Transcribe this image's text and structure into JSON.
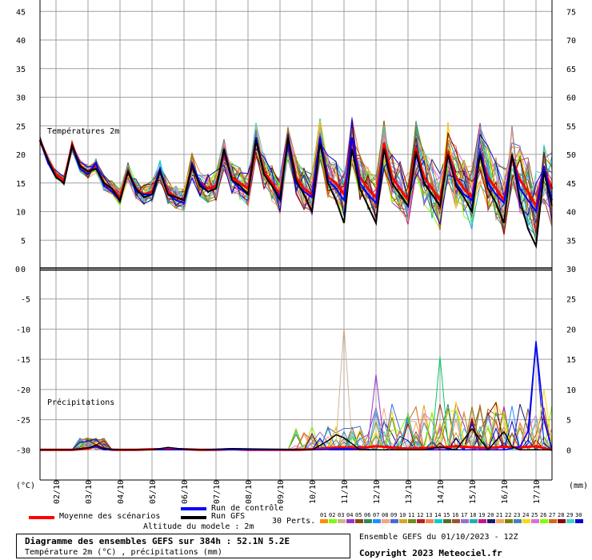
{
  "chart_data": {
    "type": "line",
    "panels": [
      {
        "name": "temperature",
        "label": "Températures 2m",
        "left_axis": {
          "range": [
            0,
            47
          ],
          "ticks": [
            0,
            5,
            10,
            15,
            20,
            25,
            30,
            35,
            40,
            45
          ]
        },
        "right_axis": {
          "range": [
            30,
            77
          ],
          "ticks": [
            35,
            40,
            45,
            50,
            55,
            60,
            65,
            70,
            75
          ]
        },
        "x_range": [
          0,
          384
        ]
      },
      {
        "name": "precipitation",
        "label": "Précipitations",
        "left_axis": {
          "range": [
            -35,
            0
          ],
          "ticks": [
            0,
            -5,
            -10,
            -15,
            -20,
            -25,
            -30
          ]
        },
        "right_axis": {
          "range": [
            -5,
            30
          ],
          "ticks": [
            30,
            25,
            20,
            15,
            10,
            5,
            0
          ]
        },
        "x_range": [
          0,
          384
        ]
      }
    ],
    "x_tick_labels": [
      "02/10",
      "03/10",
      "04/10",
      "05/10",
      "06/10",
      "07/10",
      "08/10",
      "09/10",
      "10/10",
      "11/10",
      "12/10",
      "13/10",
      "14/10",
      "15/10",
      "16/10",
      "17/10"
    ],
    "x_tick_hours": [
      12,
      36,
      60,
      84,
      108,
      132,
      156,
      180,
      204,
      228,
      252,
      276,
      300,
      324,
      348,
      372
    ],
    "left_unit": "(°C)",
    "right_unit": "(mm)",
    "series": [
      {
        "name": "Moyenne des scénarios",
        "color": "#ff0000",
        "x": [
          0,
          6,
          12,
          18,
          24,
          30,
          36,
          42,
          48,
          54,
          60,
          66,
          72,
          78,
          84,
          90,
          96,
          102,
          108,
          114,
          120,
          126,
          132,
          138,
          144,
          150,
          156,
          162,
          168,
          174,
          180,
          186,
          192,
          198,
          204,
          210,
          216,
          222,
          228,
          234,
          240,
          246,
          252,
          258,
          264,
          270,
          276,
          282,
          288,
          294,
          300,
          306,
          312,
          318,
          324,
          330,
          336,
          342,
          348,
          354,
          360,
          366,
          372,
          378,
          384
        ],
        "temp": [
          22.5,
          19,
          16.5,
          15.5,
          21.5,
          18,
          17,
          18,
          15,
          14,
          12.5,
          17,
          14,
          13,
          13.5,
          17,
          13.5,
          12.5,
          12,
          18,
          15,
          14,
          14.5,
          20,
          16,
          15,
          14,
          22.5,
          17,
          15,
          13,
          22.5,
          16,
          14,
          13,
          22.5,
          16,
          15,
          13,
          22.5,
          16,
          14,
          12.5,
          22,
          16,
          14,
          12,
          21,
          16,
          14,
          12,
          20.5,
          16,
          14,
          12.5,
          20,
          16,
          14,
          12,
          19.5,
          15.5,
          13.5,
          11,
          17.5,
          14
        ]
      },
      {
        "name": "Run de contrôle",
        "color": "#0000ff",
        "x": [
          0,
          6,
          12,
          18,
          24,
          30,
          36,
          42,
          48,
          54,
          60,
          66,
          72,
          78,
          84,
          90,
          96,
          102,
          108,
          114,
          120,
          126,
          132,
          138,
          144,
          150,
          156,
          162,
          168,
          174,
          180,
          186,
          192,
          198,
          204,
          210,
          216,
          222,
          228,
          234,
          240,
          246,
          252,
          258,
          264,
          270,
          276,
          282,
          288,
          294,
          300,
          306,
          312,
          318,
          324,
          330,
          336,
          342,
          348,
          354,
          360,
          366,
          372,
          378,
          384
        ],
        "temp": [
          22.5,
          18.5,
          16,
          15,
          21.5,
          17.5,
          16.5,
          18.5,
          14.5,
          13.5,
          12,
          17,
          13.5,
          13,
          13,
          17.5,
          13,
          12,
          11.5,
          18.5,
          15,
          13.5,
          14,
          20.5,
          15.5,
          14,
          13,
          23,
          16.5,
          14.5,
          12.5,
          22,
          15,
          13.5,
          12.5,
          23,
          15.5,
          14,
          12,
          23,
          15,
          13,
          11.5,
          21,
          15,
          13,
          11,
          20,
          15,
          13,
          11,
          20,
          15,
          13,
          12,
          20.5,
          15,
          13,
          11.5,
          20,
          14,
          12,
          10,
          18,
          12
        ]
      },
      {
        "name": "Run GFS",
        "color": "#000000",
        "x": [
          0,
          6,
          12,
          18,
          24,
          30,
          36,
          42,
          48,
          54,
          60,
          66,
          72,
          78,
          84,
          90,
          96,
          102,
          108,
          114,
          120,
          126,
          132,
          138,
          144,
          150,
          156,
          162,
          168,
          174,
          180,
          186,
          192,
          198,
          204,
          210,
          216,
          222,
          228,
          234,
          240,
          246,
          252,
          258,
          264,
          270,
          276,
          282,
          288,
          294,
          300,
          306,
          312,
          318,
          324,
          330,
          336,
          342,
          348,
          354,
          360,
          366,
          372,
          378,
          384
        ],
        "temp": [
          22.5,
          19,
          16,
          15,
          21.5,
          18,
          17,
          17.5,
          15,
          14,
          12,
          17,
          14,
          12.5,
          13,
          17,
          13,
          12.5,
          12,
          18,
          14.5,
          13.5,
          14,
          21,
          15.5,
          14.5,
          13,
          22.5,
          16.5,
          14.5,
          12,
          23,
          15.5,
          13,
          10,
          22,
          15,
          12,
          8,
          21,
          14,
          11,
          8,
          21,
          15,
          13,
          11,
          20.5,
          15,
          13,
          11,
          20,
          14.5,
          12.5,
          10,
          20,
          14,
          11.5,
          8,
          20,
          12,
          7,
          4,
          17,
          11
        ]
      }
    ],
    "precipitation_series": [
      {
        "name": "Moyenne des scénarios",
        "color": "#ff0000",
        "x": [
          0,
          12,
          24,
          36,
          42,
          48,
          54,
          60,
          72,
          84,
          96,
          108,
          120,
          132,
          144,
          156,
          168,
          180,
          192,
          204,
          216,
          228,
          240,
          252,
          264,
          276,
          288,
          300,
          312,
          324,
          336,
          348,
          360,
          372,
          384
        ],
        "mm": [
          0,
          0,
          0,
          0.2,
          0.6,
          0.2,
          0,
          0,
          0,
          0.1,
          0.1,
          0.1,
          0,
          0,
          0.1,
          0,
          0,
          0,
          0,
          0.1,
          0.3,
          0.4,
          0.3,
          0.6,
          0.4,
          0.2,
          0.3,
          0.4,
          0.6,
          0.4,
          0.3,
          0.5,
          0.4,
          0.6,
          0
        ]
      },
      {
        "name": "Run de contrôle",
        "color": "#0000ff",
        "x": [
          0,
          24,
          42,
          48,
          60,
          96,
          120,
          168,
          204,
          228,
          252,
          288,
          324,
          348,
          360,
          366,
          372,
          378,
          384
        ],
        "mm": [
          0,
          0,
          0.5,
          0,
          0,
          0,
          0,
          0,
          0,
          0.2,
          0,
          0,
          0,
          0,
          0.5,
          3,
          18,
          5,
          0
        ]
      },
      {
        "name": "Run GFS",
        "color": "#000000",
        "x": [
          0,
          24,
          36,
          42,
          48,
          60,
          84,
          96,
          108,
          120,
          144,
          204,
          216,
          222,
          228,
          234,
          240,
          252,
          288,
          300,
          312,
          324,
          336,
          348,
          354,
          360,
          384
        ],
        "mm": [
          0,
          0,
          0.3,
          0.8,
          0.2,
          0,
          0,
          0.4,
          0.1,
          0,
          0.2,
          0,
          1.5,
          2.5,
          2,
          1,
          0,
          0,
          0,
          0.5,
          0,
          3.5,
          0,
          3,
          0.5,
          0,
          0
        ]
      }
    ]
  },
  "legend": {
    "mean_label": "Moyenne des scénarios",
    "control_label": "Run de contrôle",
    "gfs_label": "Run GFS",
    "perts_label": "30 Perts.",
    "altitude_label": "Altitude du modele : 2m",
    "pert_numbers": [
      "01",
      "02",
      "03",
      "04",
      "05",
      "06",
      "07",
      "08",
      "09",
      "10",
      "11",
      "12",
      "13",
      "14",
      "15",
      "16",
      "17",
      "18",
      "19",
      "20",
      "21",
      "22",
      "23",
      "24",
      "25",
      "26",
      "27",
      "28",
      "29",
      "30"
    ],
    "pert_colors": [
      "#ff8c00",
      "#7cfc00",
      "#d2b48c",
      "#9932cc",
      "#8b4513",
      "#2e8b57",
      "#1e90ff",
      "#ffa07a",
      "#4169e1",
      "#daa520",
      "#6b8e23",
      "#b22222",
      "#ff7f50",
      "#00ced1",
      "#556b2f",
      "#a0522d",
      "#9370db",
      "#20b2aa",
      "#c71585",
      "#191970",
      "#f4a460",
      "#808000",
      "#4682b4",
      "#ffd700",
      "#da70d6",
      "#7fff00",
      "#d2691e",
      "#8b0000",
      "#48d1cc",
      "#0000cd"
    ]
  },
  "info": {
    "title": "Diagramme des ensembles GEFS sur 384h : 52.1N 5.2E",
    "subtitle": "Température 2m (°C) , précipitations (mm)",
    "ensemble": "Ensemble GEFS du 01/10/2023 - 12Z",
    "copyright": "Copyright 2023 Meteociel.fr"
  }
}
